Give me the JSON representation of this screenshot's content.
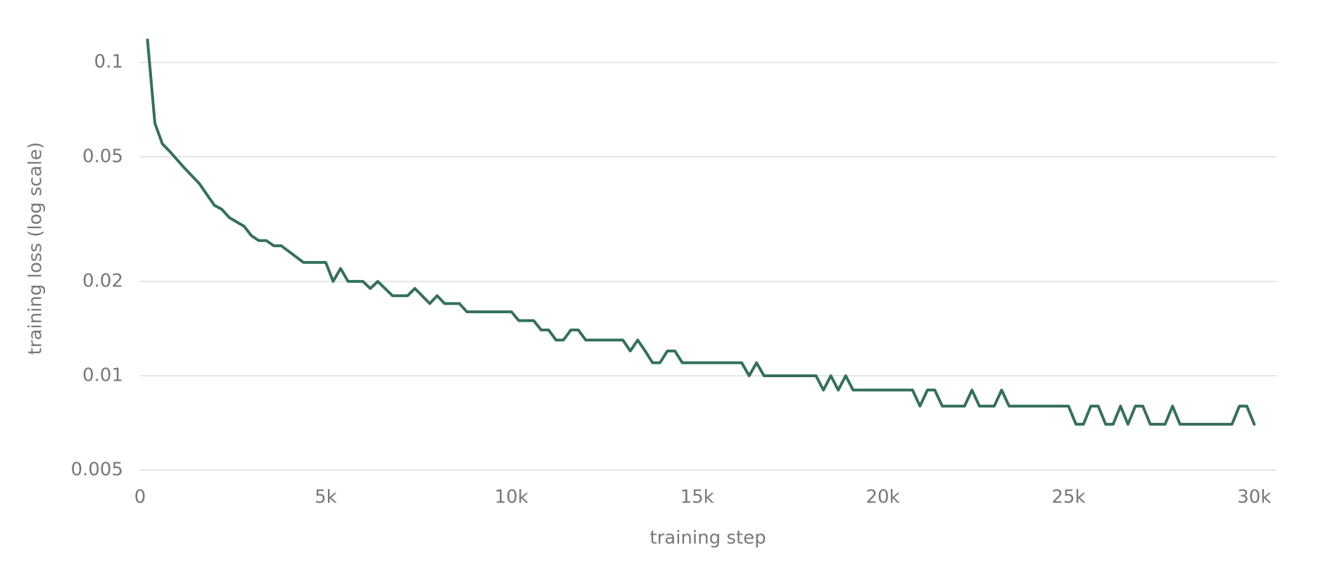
{
  "chart_data": {
    "type": "line",
    "xlabel": "training step",
    "ylabel": "training loss (log scale)",
    "yscale": "log",
    "grid": true,
    "color": "#33705a",
    "xlim": [
      0,
      30600
    ],
    "ylim": [
      0.005,
      0.13
    ],
    "xticks": [
      0,
      {
        "value": 5000,
        "label": "5k"
      },
      {
        "value": 10000,
        "label": "10k"
      },
      {
        "value": 15000,
        "label": "15k"
      },
      {
        "value": 20000,
        "label": "20k"
      },
      {
        "value": 25000,
        "label": "25k"
      },
      {
        "value": 30000,
        "label": "30k"
      }
    ],
    "yticks": [
      0.005,
      0.01,
      0.02,
      0.05,
      0.1
    ],
    "x": [
      200,
      400,
      600,
      800,
      1200,
      1600,
      2000,
      2200,
      2400,
      2800,
      3000,
      3200,
      3400,
      3600,
      3800,
      4400,
      5000,
      5200,
      5400,
      5600,
      6000,
      6200,
      6400,
      6800,
      7200,
      7400,
      7800,
      8000,
      8200,
      8600,
      8800,
      10000,
      10200,
      10600,
      10800,
      11000,
      11200,
      11400,
      11600,
      11800,
      12000,
      13000,
      13200,
      13400,
      13600,
      13800,
      14000,
      14200,
      14400,
      14600,
      16200,
      16400,
      16600,
      16800,
      18200,
      18400,
      18600,
      18800,
      19000,
      19200,
      20800,
      21000,
      21200,
      21400,
      21600,
      22200,
      22400,
      22600,
      23000,
      23200,
      23400,
      25000,
      25200,
      25400,
      25600,
      25800,
      26000,
      26200,
      26400,
      26600,
      26800,
      27000,
      27200,
      27600,
      27800,
      28000,
      29400,
      29600,
      29800,
      30000
    ],
    "values": [
      0.118,
      0.064,
      0.055,
      0.052,
      0.046,
      0.041,
      0.035,
      0.034,
      0.032,
      0.03,
      0.028,
      0.027,
      0.027,
      0.026,
      0.026,
      0.023,
      0.023,
      0.02,
      0.022,
      0.02,
      0.02,
      0.019,
      0.02,
      0.018,
      0.018,
      0.019,
      0.017,
      0.018,
      0.017,
      0.017,
      0.016,
      0.016,
      0.015,
      0.015,
      0.014,
      0.014,
      0.013,
      0.013,
      0.014,
      0.014,
      0.013,
      0.013,
      0.012,
      0.013,
      0.012,
      0.011,
      0.011,
      0.012,
      0.012,
      0.011,
      0.011,
      0.01,
      0.011,
      0.01,
      0.01,
      0.009,
      0.01,
      0.009,
      0.01,
      0.009,
      0.009,
      0.008,
      0.009,
      0.009,
      0.008,
      0.008,
      0.009,
      0.008,
      0.008,
      0.009,
      0.008,
      0.008,
      0.007,
      0.007,
      0.008,
      0.008,
      0.007,
      0.007,
      0.008,
      0.007,
      0.008,
      0.008,
      0.007,
      0.007,
      0.008,
      0.007,
      0.007,
      0.008,
      0.008,
      0.007
    ]
  }
}
